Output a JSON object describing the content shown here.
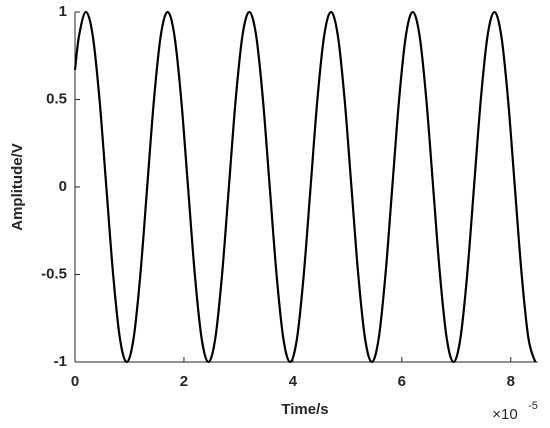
{
  "chart_data": {
    "type": "line",
    "xlabel": "Time/s",
    "ylabel": "Amplitude/V",
    "x_multiplier": "×10",
    "x_multiplier_exponent": "-5",
    "x": [
      0,
      0.075,
      0.2,
      0.325,
      0.45,
      0.575,
      0.7,
      0.825,
      0.95,
      1.075,
      1.2,
      1.325,
      1.45,
      1.575,
      1.7,
      1.825,
      1.95,
      2.075,
      2.2,
      2.325,
      2.45,
      2.575,
      2.7,
      2.825,
      2.95,
      3.075,
      3.2,
      3.325,
      3.45,
      3.575,
      3.7,
      3.825,
      3.95,
      4.075,
      4.2,
      4.325,
      4.45,
      4.575,
      4.7,
      4.825,
      4.95,
      5.075,
      5.2,
      5.325,
      5.45,
      5.575,
      5.7,
      5.825,
      5.95,
      6.075,
      6.2,
      6.325,
      6.45,
      6.575,
      6.7,
      6.825,
      6.95,
      7.075,
      7.2,
      7.325,
      7.45,
      7.575,
      7.7,
      7.825,
      7.95,
      8.075,
      8.2,
      8.325,
      8.45
    ],
    "series": [
      {
        "color": "#000000",
        "values": [
          0.669,
          0.866,
          1,
          0.866,
          0.5,
          0,
          -0.5,
          -0.866,
          -1,
          -0.866,
          -0.5,
          0,
          0.5,
          0.866,
          1,
          0.866,
          0.5,
          0,
          -0.5,
          -0.866,
          -1,
          -0.866,
          -0.5,
          0,
          0.5,
          0.866,
          1,
          0.866,
          0.5,
          0,
          -0.5,
          -0.866,
          -1,
          -0.866,
          -0.5,
          0,
          0.5,
          0.866,
          1,
          0.866,
          0.5,
          0,
          -0.5,
          -0.866,
          -1,
          -0.866,
          -0.5,
          0,
          0.5,
          0.866,
          1,
          0.866,
          0.5,
          0,
          -0.5,
          -0.866,
          -1,
          -0.866,
          -0.5,
          0,
          0.5,
          0.866,
          1,
          0.866,
          0.5,
          0,
          -0.5,
          -0.866,
          -1
        ]
      }
    ],
    "xlim": [
      0,
      8.5
    ],
    "xticks": [
      0,
      2,
      4,
      6,
      8
    ],
    "ylim": [
      -1,
      1
    ],
    "yticks": [
      -1,
      -0.5,
      0,
      0.5,
      1
    ],
    "grid": false
  }
}
